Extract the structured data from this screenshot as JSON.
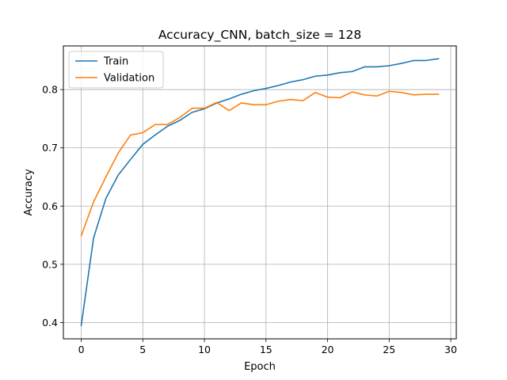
{
  "chart_data": {
    "type": "line",
    "title": "Accuracy_CNN, batch_size = 128",
    "xlabel": "Epoch",
    "ylabel": "Accuracy",
    "xlim": [
      -1.45,
      30.45
    ],
    "ylim": [
      0.372,
      0.875
    ],
    "xticks": [
      0,
      5,
      10,
      15,
      20,
      25,
      30
    ],
    "yticks": [
      0.4,
      0.5,
      0.6,
      0.7,
      0.8
    ],
    "xtick_labels": [
      "0",
      "5",
      "10",
      "15",
      "20",
      "25",
      "30"
    ],
    "ytick_labels": [
      "0.4",
      "0.5",
      "0.6",
      "0.7",
      "0.8"
    ],
    "grid": true,
    "legend_position": "top-left",
    "x": [
      0,
      1,
      2,
      3,
      4,
      5,
      6,
      7,
      8,
      9,
      10,
      11,
      12,
      13,
      14,
      15,
      16,
      17,
      18,
      19,
      20,
      21,
      22,
      23,
      24,
      25,
      26,
      27,
      28,
      29
    ],
    "series": [
      {
        "name": "Train",
        "color": "#1f77b4",
        "values": [
          0.395,
          0.545,
          0.613,
          0.653,
          0.68,
          0.706,
          0.722,
          0.737,
          0.747,
          0.761,
          0.767,
          0.777,
          0.784,
          0.792,
          0.798,
          0.802,
          0.807,
          0.813,
          0.817,
          0.823,
          0.825,
          0.829,
          0.831,
          0.839,
          0.839,
          0.841,
          0.845,
          0.85,
          0.85,
          0.853
        ]
      },
      {
        "name": "Validation",
        "color": "#ff7f0e",
        "values": [
          0.549,
          0.607,
          0.65,
          0.691,
          0.722,
          0.726,
          0.74,
          0.74,
          0.752,
          0.768,
          0.768,
          0.778,
          0.764,
          0.777,
          0.774,
          0.774,
          0.78,
          0.783,
          0.781,
          0.795,
          0.787,
          0.786,
          0.796,
          0.791,
          0.789,
          0.797,
          0.795,
          0.791,
          0.792,
          0.792
        ]
      }
    ]
  }
}
